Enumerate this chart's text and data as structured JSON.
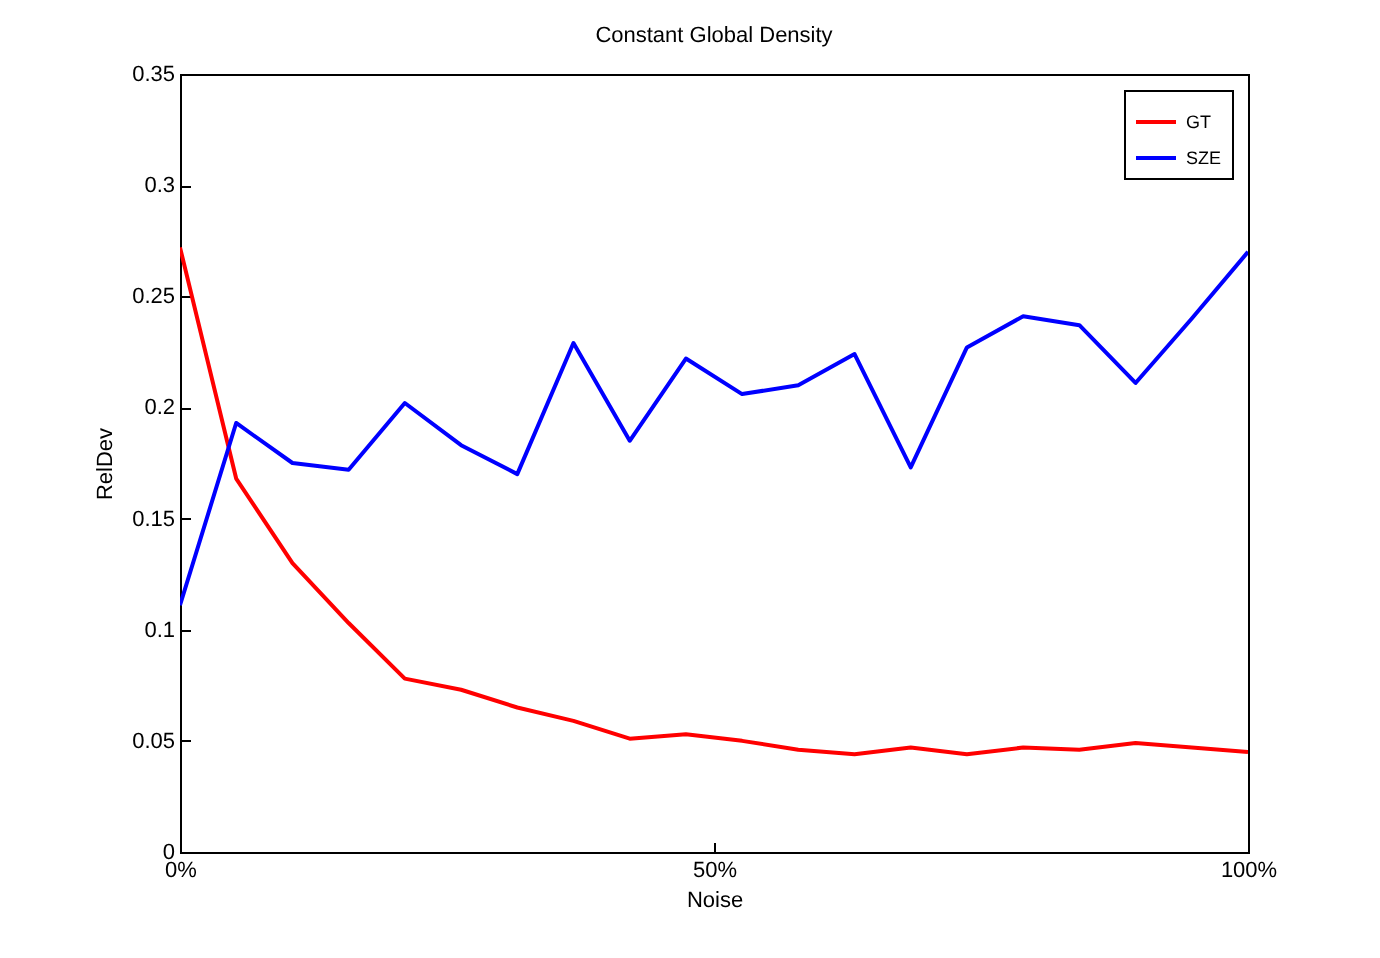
{
  "chart_data": {
    "type": "line",
    "title": "Constant Global Density",
    "xlabel": "Noise",
    "ylabel": "RelDev",
    "x": [
      0,
      5.26,
      10.53,
      15.79,
      21.05,
      26.32,
      31.58,
      36.84,
      42.11,
      47.37,
      52.63,
      57.89,
      63.16,
      68.42,
      73.68,
      78.95,
      84.21,
      89.47,
      94.74,
      100
    ],
    "series": [
      {
        "name": "GT",
        "color": "#ff0000",
        "values": [
          0.272,
          0.168,
          0.13,
          0.103,
          0.078,
          0.073,
          0.065,
          0.059,
          0.051,
          0.053,
          0.05,
          0.046,
          0.044,
          0.047,
          0.044,
          0.047,
          0.046,
          0.049,
          0.047,
          0.045
        ]
      },
      {
        "name": "SZE",
        "color": "#0000ff",
        "values": [
          0.111,
          0.193,
          0.175,
          0.172,
          0.202,
          0.183,
          0.17,
          0.229,
          0.185,
          0.222,
          0.206,
          0.21,
          0.224,
          0.173,
          0.227,
          0.241,
          0.237,
          0.211,
          0.24,
          0.27
        ]
      }
    ],
    "xlim": [
      0,
      100
    ],
    "xticks": [
      {
        "value": 0,
        "label": "0%"
      },
      {
        "value": 50,
        "label": "50%"
      },
      {
        "value": 100,
        "label": "100%"
      }
    ],
    "ylim": [
      0,
      0.35
    ],
    "yticks": [
      0,
      0.05,
      0.1,
      0.15,
      0.2,
      0.25,
      0.3,
      0.35
    ],
    "legend": "top right",
    "marker": "none",
    "line_style": "solid"
  }
}
